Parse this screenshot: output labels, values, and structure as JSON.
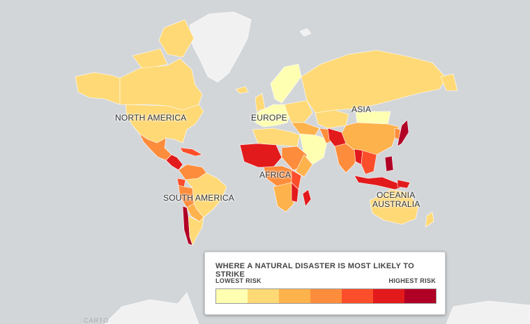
{
  "regions": {
    "north_america": "NORTH AMERICA",
    "south_america": "SOUTH AMERICA",
    "europe": "EUROPE",
    "africa": "AFRICA",
    "asia": "ASIA",
    "oceania": "OCEANIA",
    "australia": "AUSTRALIA"
  },
  "legend": {
    "title": "WHERE A NATURAL DISASTER IS MOST LIKELY TO STRIKE",
    "low_label": "LOWEST RISK",
    "high_label": "HIGHEST RISK",
    "scale_colors": [
      "#ffffb2",
      "#fed976",
      "#feb24c",
      "#fd8d3c",
      "#fc4e2a",
      "#e31a1c",
      "#b10026"
    ]
  },
  "attribution": "CARTO",
  "colors": {
    "ocean": "#d3d6d9",
    "greenland": "#f1f1f1",
    "border": "#ffffff"
  }
}
